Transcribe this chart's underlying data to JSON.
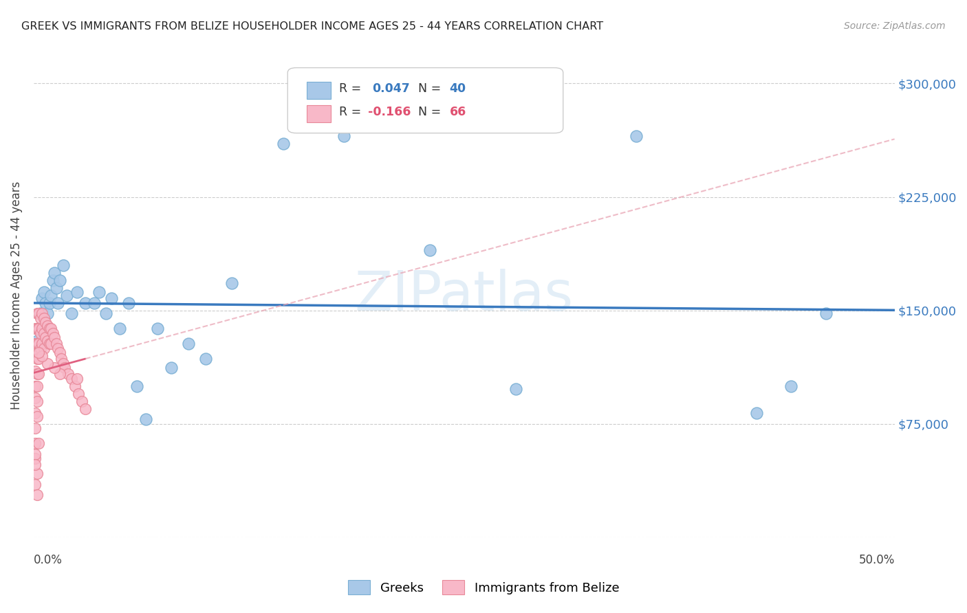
{
  "title": "GREEK VS IMMIGRANTS FROM BELIZE HOUSEHOLDER INCOME AGES 25 - 44 YEARS CORRELATION CHART",
  "source": "Source: ZipAtlas.com",
  "ylabel": "Householder Income Ages 25 - 44 years",
  "yticks": [
    0,
    75000,
    150000,
    225000,
    300000
  ],
  "ytick_labels": [
    "",
    "$75,000",
    "$150,000",
    "$225,000",
    "$300,000"
  ],
  "xlim": [
    0.0,
    0.5
  ],
  "ylim": [
    0,
    320000
  ],
  "watermark": "ZIPatlas",
  "blue_color": "#a8c8e8",
  "blue_edge_color": "#7aafd4",
  "pink_color": "#f8b8c8",
  "pink_edge_color": "#e88898",
  "blue_line_color": "#3a7abf",
  "pink_line_color": "#e06080",
  "pink_dash_color": "#e8a0b0",
  "greek_x": [
    0.002,
    0.003,
    0.004,
    0.005,
    0.006,
    0.007,
    0.008,
    0.009,
    0.01,
    0.011,
    0.012,
    0.013,
    0.014,
    0.015,
    0.017,
    0.019,
    0.022,
    0.025,
    0.03,
    0.035,
    0.038,
    0.042,
    0.045,
    0.05,
    0.055,
    0.06,
    0.065,
    0.072,
    0.08,
    0.09,
    0.1,
    0.115,
    0.145,
    0.18,
    0.23,
    0.28,
    0.35,
    0.42,
    0.44,
    0.46
  ],
  "greek_y": [
    130000,
    138000,
    148000,
    158000,
    162000,
    155000,
    148000,
    155000,
    160000,
    170000,
    175000,
    165000,
    155000,
    170000,
    180000,
    160000,
    148000,
    162000,
    155000,
    155000,
    162000,
    148000,
    158000,
    138000,
    155000,
    100000,
    78000,
    138000,
    112000,
    128000,
    118000,
    168000,
    260000,
    265000,
    190000,
    98000,
    265000,
    82000,
    100000,
    148000
  ],
  "belize_x": [
    0.001,
    0.001,
    0.001,
    0.001,
    0.001,
    0.001,
    0.001,
    0.001,
    0.001,
    0.001,
    0.002,
    0.002,
    0.002,
    0.002,
    0.002,
    0.002,
    0.002,
    0.002,
    0.003,
    0.003,
    0.003,
    0.003,
    0.003,
    0.004,
    0.004,
    0.004,
    0.005,
    0.005,
    0.005,
    0.006,
    0.006,
    0.006,
    0.007,
    0.007,
    0.008,
    0.008,
    0.009,
    0.009,
    0.01,
    0.01,
    0.011,
    0.012,
    0.013,
    0.014,
    0.015,
    0.016,
    0.017,
    0.018,
    0.02,
    0.022,
    0.024,
    0.026,
    0.028,
    0.03,
    0.025,
    0.015,
    0.012,
    0.008,
    0.005,
    0.003,
    0.002,
    0.001,
    0.001,
    0.001,
    0.002,
    0.003
  ],
  "belize_y": [
    138000,
    128000,
    120000,
    110000,
    100000,
    92000,
    82000,
    72000,
    62000,
    52000,
    148000,
    138000,
    128000,
    118000,
    108000,
    100000,
    90000,
    80000,
    148000,
    138000,
    128000,
    118000,
    108000,
    145000,
    135000,
    125000,
    148000,
    138000,
    128000,
    145000,
    135000,
    125000,
    142000,
    132000,
    140000,
    130000,
    138000,
    128000,
    138000,
    128000,
    135000,
    132000,
    128000,
    125000,
    122000,
    118000,
    115000,
    112000,
    108000,
    105000,
    100000,
    95000,
    90000,
    85000,
    105000,
    108000,
    112000,
    115000,
    120000,
    122000,
    42000,
    35000,
    55000,
    48000,
    28000,
    62000
  ]
}
